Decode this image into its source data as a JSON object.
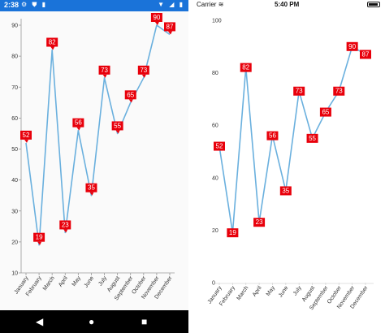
{
  "android": {
    "status": {
      "time": "2:38",
      "left_icons": "⚙ ⛊ ▮",
      "right_icons": "▼ ◢ ▮"
    },
    "nav": {
      "back": "◀",
      "home": "●",
      "recent": "■"
    }
  },
  "ios": {
    "status": {
      "carrier": "Carrier",
      "wifi": "≋",
      "time": "5:40 PM"
    }
  },
  "chart_data": [
    {
      "type": "line",
      "categories": [
        "January",
        "February",
        "March",
        "April",
        "May",
        "June",
        "July",
        "August",
        "September",
        "October",
        "November",
        "December"
      ],
      "values": [
        52,
        19,
        82,
        23,
        56,
        35,
        73,
        55,
        65,
        73,
        90,
        87
      ],
      "ylim": [
        10,
        90
      ],
      "yticks": [
        10,
        20,
        30,
        40,
        50,
        60,
        70,
        80,
        90
      ],
      "grid": false,
      "series_color": "#6ab0de",
      "label_color": "#e8000b"
    },
    {
      "type": "line",
      "categories": [
        "January",
        "February",
        "March",
        "April",
        "May",
        "June",
        "July",
        "August",
        "September",
        "October",
        "November",
        "December"
      ],
      "values": [
        52,
        19,
        82,
        23,
        56,
        35,
        73,
        55,
        65,
        73,
        90,
        87
      ],
      "ylim": [
        0,
        100
      ],
      "yticks": [
        0,
        20,
        40,
        60,
        80,
        100
      ],
      "grid": false,
      "series_color": "#6ab0de",
      "label_color": "#e8000b"
    }
  ]
}
